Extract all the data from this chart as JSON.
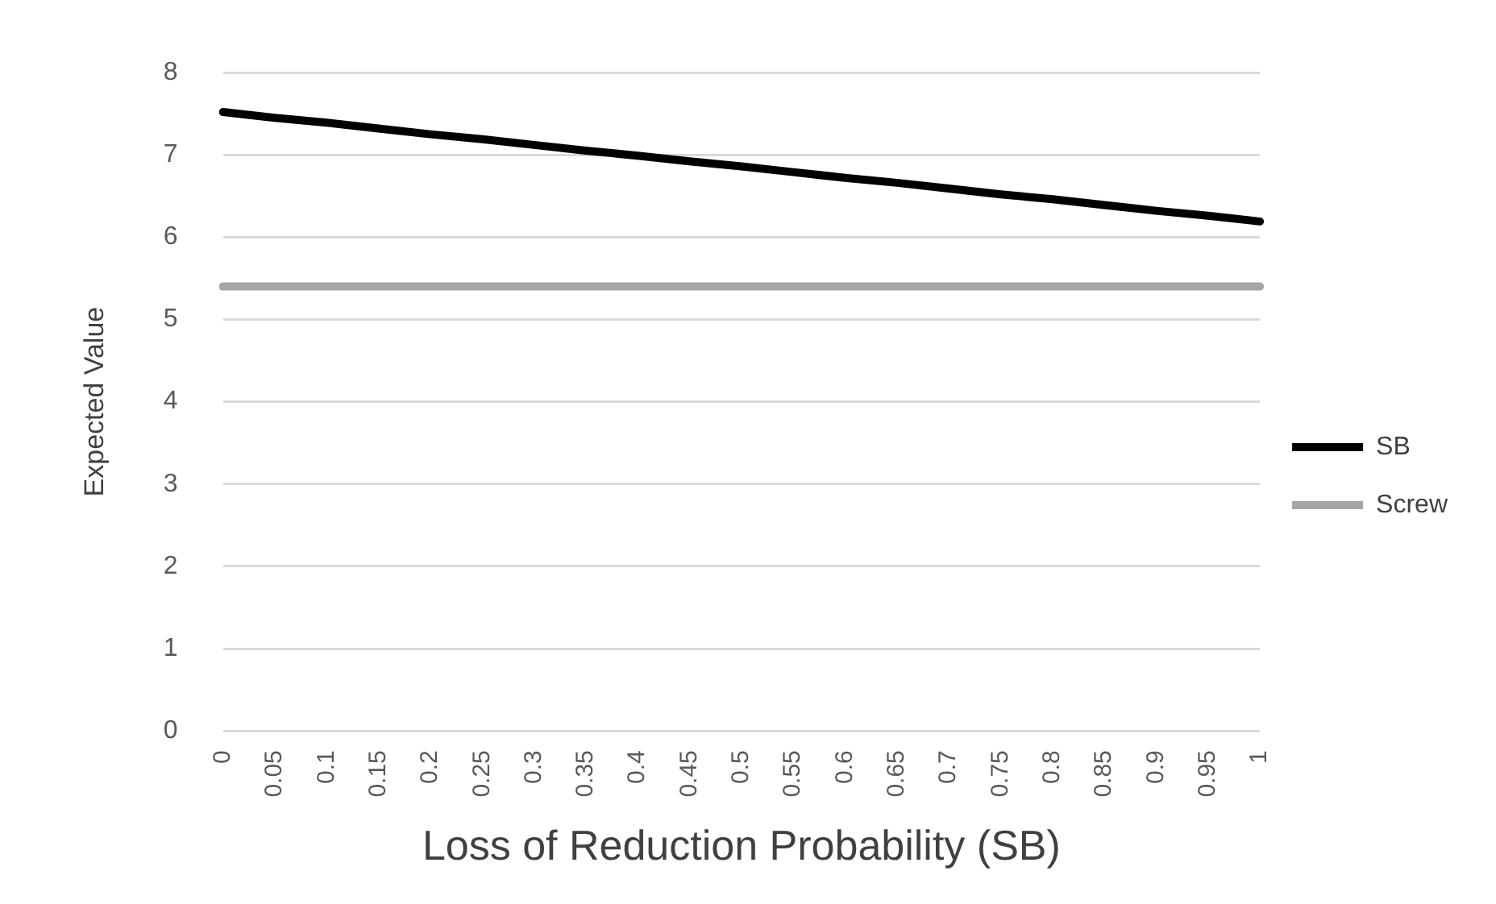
{
  "chart_data": {
    "type": "line",
    "xlabel": "Loss of Reduction Probability (SB)",
    "ylabel": "Expected Value",
    "categories": [
      "0",
      "0.05",
      "0.1",
      "0.15",
      "0.2",
      "0.25",
      "0.3",
      "0.35",
      "0.4",
      "0.45",
      "0.5",
      "0.55",
      "0.6",
      "0.65",
      "0.7",
      "0.75",
      "0.8",
      "0.85",
      "0.9",
      "0.95",
      "1"
    ],
    "series": [
      {
        "name": "SB",
        "color": "#000000",
        "values": [
          7.52,
          7.45,
          7.39,
          7.32,
          7.25,
          7.19,
          7.12,
          7.05,
          6.99,
          6.92,
          6.86,
          6.79,
          6.72,
          6.66,
          6.59,
          6.52,
          6.46,
          6.39,
          6.32,
          6.26,
          6.19
        ]
      },
      {
        "name": "Screw",
        "color": "#a5a5a5",
        "values": [
          5.4,
          5.4,
          5.4,
          5.4,
          5.4,
          5.4,
          5.4,
          5.4,
          5.4,
          5.4,
          5.4,
          5.4,
          5.4,
          5.4,
          5.4,
          5.4,
          5.4,
          5.4,
          5.4,
          5.4,
          5.4
        ]
      }
    ],
    "ylim": [
      0,
      8
    ],
    "yticks": [
      0,
      1,
      2,
      3,
      4,
      5,
      6,
      7,
      8
    ],
    "grid": "y",
    "legend": "right",
    "marker": "none",
    "line_style": "solid"
  }
}
